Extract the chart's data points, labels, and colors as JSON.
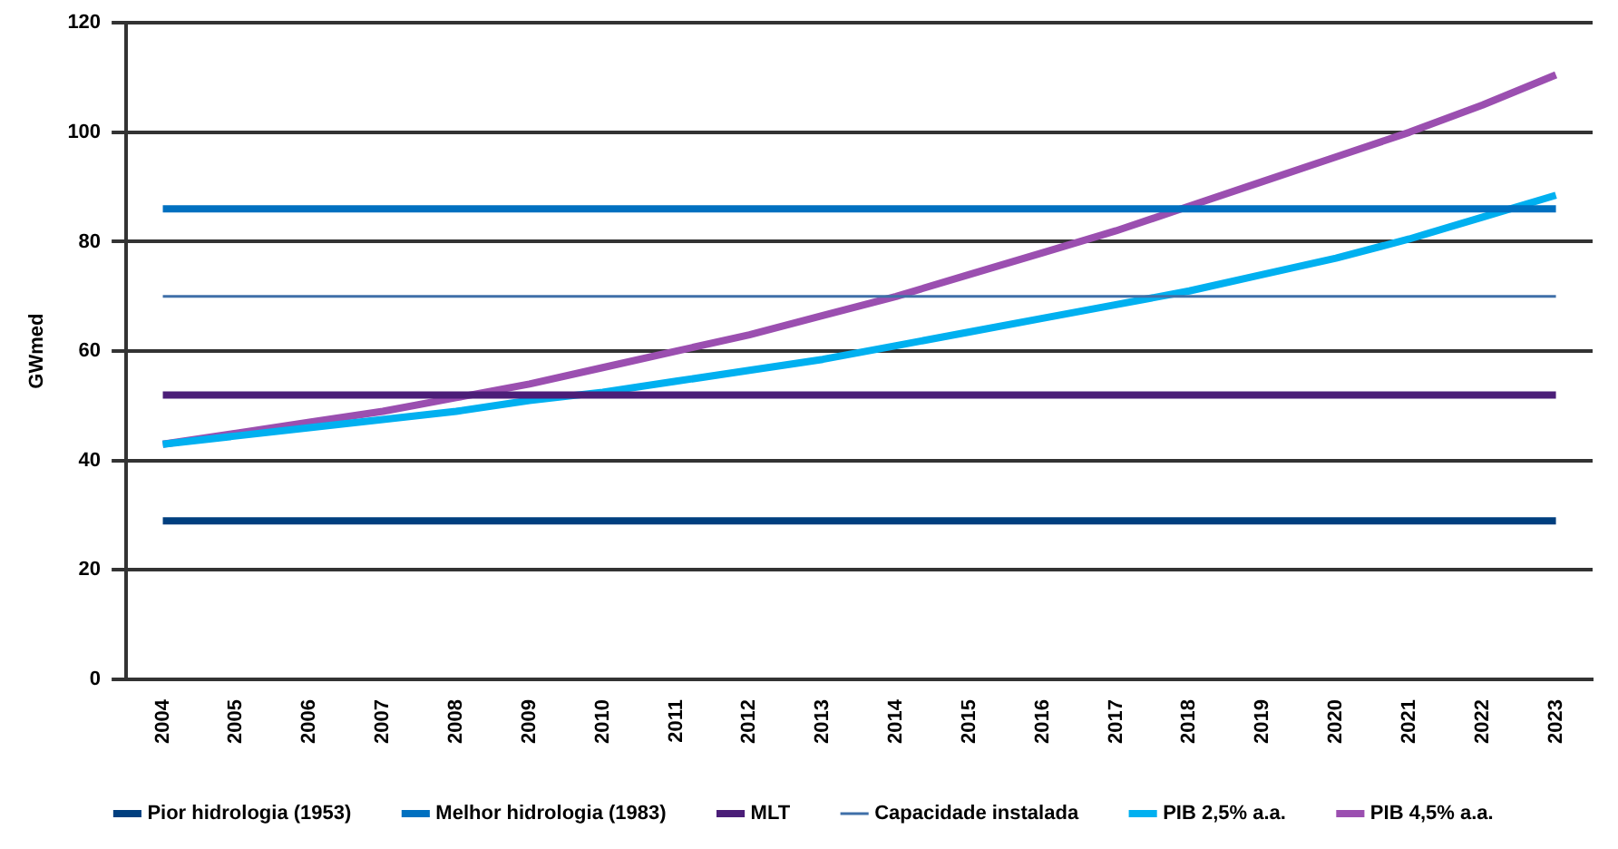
{
  "chart_data": {
    "type": "line",
    "ylabel": "GWmed",
    "categories": [
      "2004",
      "2005",
      "2006",
      "2007",
      "2008",
      "2009",
      "2010",
      "2011",
      "2012",
      "2013",
      "2014",
      "2015",
      "2016",
      "2017",
      "2018",
      "2019",
      "2020",
      "2021",
      "2022",
      "2023"
    ],
    "ylim": [
      0,
      120
    ],
    "yticks": [
      0,
      20,
      40,
      60,
      80,
      100,
      120
    ],
    "grid": "y",
    "legend": "bottom",
    "marker": "none",
    "line_style": "solid",
    "series": [
      {
        "name": "Pior hidrologia (1953)",
        "color": "#003f7f",
        "values": [
          29,
          29,
          29,
          29,
          29,
          29,
          29,
          29,
          29,
          29,
          29,
          29,
          29,
          29,
          29,
          29,
          29,
          29,
          29,
          29
        ]
      },
      {
        "name": "Melhor hidrologia (1983)",
        "color": "#0070c0",
        "values": [
          86,
          86,
          86,
          86,
          86,
          86,
          86,
          86,
          86,
          86,
          86,
          86,
          86,
          86,
          86,
          86,
          86,
          86,
          86,
          86
        ]
      },
      {
        "name": "MLT",
        "color": "#4b1e78",
        "values": [
          52,
          52,
          52,
          52,
          52,
          52,
          52,
          52,
          52,
          52,
          52,
          52,
          52,
          52,
          52,
          52,
          52,
          52,
          52,
          52
        ]
      },
      {
        "name": "Capacidade instalada",
        "color": "#3f6fa8",
        "values": [
          70,
          70,
          70,
          70,
          70,
          70,
          70,
          70,
          70,
          70,
          70,
          70,
          70,
          70,
          70,
          70,
          70,
          70,
          70,
          70
        ]
      },
      {
        "name": "PIB 2,5% a.a.",
        "color": "#00b0f0",
        "values": [
          43,
          44.5,
          46,
          47.5,
          49,
          51,
          52.5,
          54.5,
          56.5,
          58.5,
          61,
          63.5,
          66,
          68.5,
          71,
          74,
          77,
          80.5,
          84.5,
          88.5
        ]
      },
      {
        "name": "PIB 4,5% a.a.",
        "color": "#9b4fb0",
        "values": [
          43,
          45,
          47,
          49,
          51.5,
          54,
          57,
          60,
          63,
          66.5,
          70,
          74,
          78,
          82,
          86.5,
          91,
          95.5,
          100,
          105,
          110.5
        ]
      }
    ]
  }
}
